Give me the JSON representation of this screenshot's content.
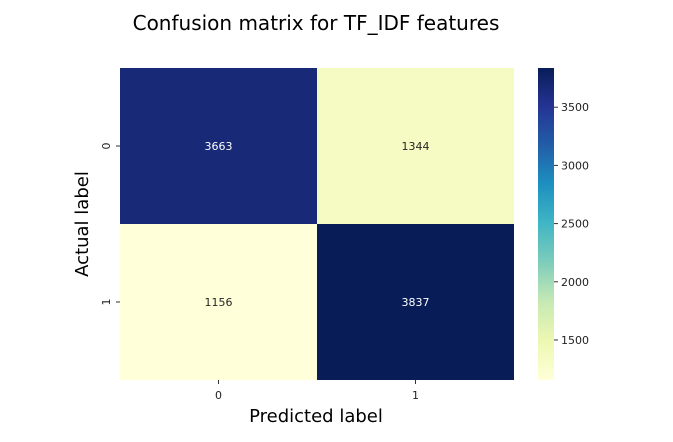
{
  "chart_data": {
    "type": "heatmap",
    "title": "Confusion matrix for TF_IDF features",
    "xlabel": "Predicted label",
    "ylabel": "Actual label",
    "x_categories": [
      "0",
      "1"
    ],
    "y_categories": [
      "0",
      "1"
    ],
    "values": [
      [
        3663,
        1344
      ],
      [
        1156,
        3837
      ]
    ],
    "colormap": "YlGnBu",
    "colorbar": {
      "min": 1156,
      "max": 3837,
      "ticks": [
        1500,
        2000,
        2500,
        3000,
        3500
      ],
      "tick_labels": [
        "1500",
        "2000",
        "2500",
        "3000",
        "3500"
      ]
    },
    "grid": false,
    "legend": "colorbar-right"
  }
}
